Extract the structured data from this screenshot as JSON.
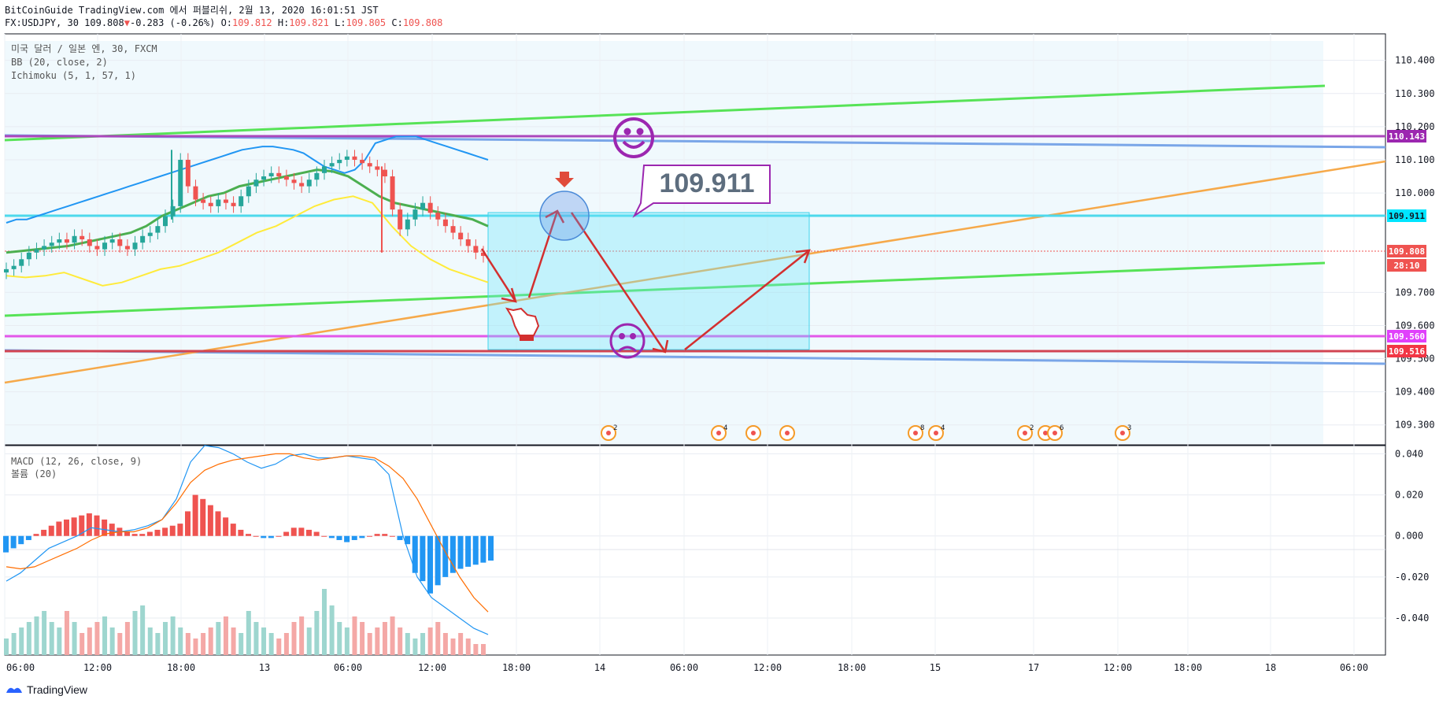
{
  "header": {
    "line1": "BitCoinGuide TradingView.com 에서 퍼블리쉬, 2월 13, 2020 16:01:51 JST",
    "symbol": "FX:USDJPY, 30",
    "price": "109.808",
    "change": "-0.283 (-0.26%)",
    "open_label": "O:",
    "open": "109.812",
    "high_label": "H:",
    "high": "109.821",
    "low_label": "L:",
    "low": "109.805",
    "close_label": "C:",
    "close": "109.808"
  },
  "legend": {
    "pair": "미국 달러 / 일본 엔, 30, FXCM",
    "bb": "BB (20, close, 2)",
    "ichimoku": "Ichimoku (5, 1, 57, 1)",
    "macd": "MACD (12, 26, close, 9)",
    "volume": "볼륨 (20)"
  },
  "annotation": {
    "target_price": "109.911"
  },
  "footer": {
    "brand": "TradingView"
  },
  "chart_data": [
    {
      "type": "line",
      "title": "USDJPY 30",
      "x_ticks": [
        "06:00",
        "12:00",
        "18:00",
        "13",
        "06:00",
        "12:00",
        "18:00",
        "14",
        "06:00",
        "12:00",
        "18:00",
        "15",
        "17",
        "12:00",
        "18:00",
        "18",
        "06:00"
      ],
      "ylim": [
        109.24,
        110.48
      ],
      "y_ticks": [
        "110.400",
        "110.300",
        "110.200",
        "110.100",
        "110.000",
        "109.700",
        "109.600",
        "109.500",
        "109.400",
        "109.300"
      ],
      "price_labels": [
        {
          "value": "110.143",
          "color": "#9c27b0"
        },
        {
          "value": "109.911",
          "color": "#00e5ff"
        },
        {
          "value": "109.808",
          "color": "#ef5350"
        },
        {
          "value": "28:10",
          "color": "#ef5350"
        },
        {
          "value": "109.560",
          "color": "#e040fb"
        },
        {
          "value": "109.516",
          "color": "#f23645"
        }
      ],
      "price_series": {
        "name": "USDJPY",
        "values": [
          109.77,
          109.78,
          109.8,
          109.82,
          109.83,
          109.84,
          109.85,
          109.86,
          109.85,
          109.87,
          109.86,
          109.84,
          109.83,
          109.85,
          109.86,
          109.84,
          109.83,
          109.85,
          109.87,
          109.88,
          109.9,
          109.93,
          109.96,
          110.1,
          110.02,
          109.98,
          109.97,
          109.96,
          109.98,
          109.97,
          109.96,
          109.99,
          110.02,
          110.04,
          110.05,
          110.06,
          110.05,
          110.04,
          110.03,
          110.02,
          110.04,
          110.06,
          110.08,
          110.09,
          110.1,
          110.11,
          110.1,
          110.09,
          110.08,
          110.07,
          110.05,
          109.95,
          109.89,
          109.92,
          109.95,
          109.97,
          109.94,
          109.92,
          109.9,
          109.88,
          109.86,
          109.84,
          109.82,
          109.81
        ]
      },
      "bb_upper": [
        109.91,
        109.92,
        109.92,
        109.93,
        109.94,
        109.95,
        109.96,
        109.97,
        109.98,
        109.99,
        110.0,
        110.01,
        110.02,
        110.03,
        110.04,
        110.05,
        110.06,
        110.07,
        110.08,
        110.09,
        110.1,
        110.11,
        110.12,
        110.13,
        110.135,
        110.14,
        110.14,
        110.135,
        110.13,
        110.12,
        110.1,
        110.08,
        110.07,
        110.06,
        110.07,
        110.1,
        110.15,
        110.16,
        110.17,
        110.17,
        110.17,
        110.16,
        110.15,
        110.14,
        110.13,
        110.12,
        110.11,
        110.1
      ],
      "bb_basis": [
        109.82,
        109.825,
        109.83,
        109.835,
        109.84,
        109.85,
        109.86,
        109.87,
        109.88,
        109.9,
        109.93,
        109.95,
        109.97,
        109.99,
        110.0,
        110.02,
        110.03,
        110.04,
        110.05,
        110.06,
        110.07,
        110.065,
        110.05,
        110.02,
        109.99,
        109.97,
        109.96,
        109.95,
        109.94,
        109.93,
        109.92,
        109.9
      ],
      "bb_lower": [
        109.75,
        109.745,
        109.75,
        109.76,
        109.74,
        109.72,
        109.73,
        109.75,
        109.77,
        109.78,
        109.8,
        109.82,
        109.85,
        109.88,
        109.9,
        109.93,
        109.96,
        109.98,
        109.99,
        109.97,
        109.9,
        109.84,
        109.8,
        109.77,
        109.75,
        109.73
      ]
    },
    {
      "type": "bar",
      "title": "MACD (12, 26, close, 9)",
      "ylim": [
        -0.058,
        0.044
      ],
      "y_ticks": [
        "0.040",
        "0.020",
        "0.000",
        "-0.020",
        "-0.040"
      ],
      "series": [
        {
          "values": [
            -0.008,
            -0.006,
            -0.004,
            -0.002,
            0.001,
            0.003,
            0.005,
            0.007,
            0.008,
            0.009,
            0.01,
            0.011,
            0.01,
            0.008,
            0.006,
            0.004,
            0.002,
            0.001,
            0.001,
            0.002,
            0.003,
            0.004,
            0.005,
            0.006,
            0.012,
            0.02,
            0.018,
            0.015,
            0.012,
            0.009,
            0.006,
            0.003,
            0.001,
            0.0,
            -0.001,
            -0.001,
            0.0,
            0.002,
            0.004,
            0.004,
            0.003,
            0.002,
            0.0,
            -0.001,
            -0.002,
            -0.003,
            -0.002,
            -0.001,
            0.0,
            0.001,
            0.001,
            0.0,
            -0.002,
            -0.004,
            -0.018,
            -0.022,
            -0.028,
            -0.024,
            -0.02,
            -0.018,
            -0.016,
            -0.015,
            -0.014,
            -0.013,
            -0.012
          ]
        },
        {
          "name": "MACD",
          "values": [
            -0.022,
            -0.018,
            -0.012,
            -0.006,
            -0.003,
            0.0,
            0.004,
            0.003,
            0.002,
            0.003,
            0.005,
            0.008,
            0.018,
            0.036,
            0.044,
            0.043,
            0.04,
            0.036,
            0.033,
            0.035,
            0.039,
            0.04,
            0.038,
            0.038,
            0.039,
            0.038,
            0.037,
            0.03,
            0.0,
            -0.02,
            -0.03,
            -0.035,
            -0.04,
            -0.045,
            -0.048
          ]
        },
        {
          "name": "Signal",
          "values": [
            -0.015,
            -0.016,
            -0.015,
            -0.012,
            -0.009,
            -0.006,
            -0.002,
            0.001,
            0.002,
            0.002,
            0.004,
            0.008,
            0.016,
            0.026,
            0.032,
            0.035,
            0.037,
            0.038,
            0.039,
            0.04,
            0.04,
            0.038,
            0.037,
            0.038,
            0.039,
            0.039,
            0.038,
            0.034,
            0.028,
            0.018,
            0.005,
            -0.008,
            -0.02,
            -0.03,
            -0.037
          ]
        }
      ]
    },
    {
      "type": "bar",
      "title": "볼륨 (20)",
      "values": [
        3,
        4,
        5,
        6,
        7,
        8,
        6,
        5,
        8,
        6,
        4,
        5,
        6,
        7,
        5,
        4,
        6,
        8,
        9,
        5,
        4,
        6,
        7,
        5,
        4,
        3,
        4,
        5,
        6,
        7,
        5,
        4,
        8,
        6,
        5,
        4,
        3,
        4,
        6,
        7,
        5,
        8,
        12,
        9,
        6,
        5,
        7,
        6,
        4,
        5,
        6,
        7,
        5,
        4,
        3,
        4,
        5,
        6,
        4,
        3,
        4,
        3,
        2,
        2
      ]
    }
  ]
}
